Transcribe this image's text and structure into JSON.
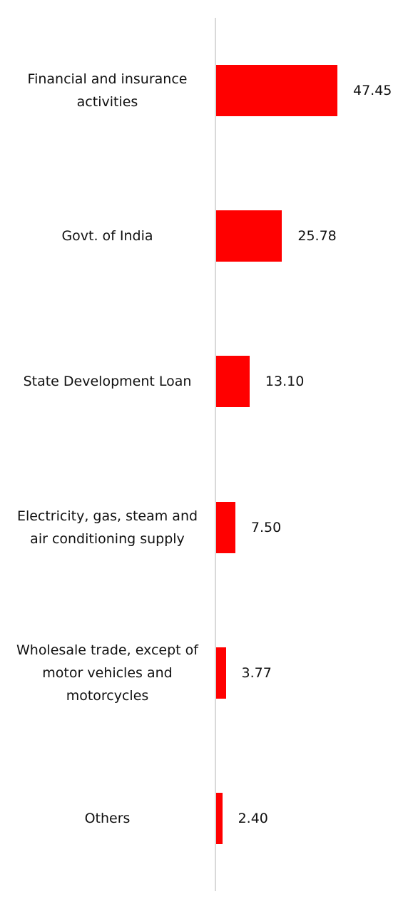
{
  "chart_data": {
    "type": "hbar",
    "categories": [
      "Financial and insurance activities",
      "Govt. of India",
      "State Development Loan",
      "Electricity, gas, steam and air conditioning supply",
      "Wholesale trade, except of motor vehicles and motorcycles",
      "Others"
    ],
    "values": [
      47.45,
      25.78,
      13.1,
      7.5,
      3.77,
      2.4
    ],
    "value_labels": [
      "47.45",
      "25.78",
      "13.10",
      "7.50",
      "3.77",
      "2.40"
    ],
    "color": "#ff0000"
  }
}
